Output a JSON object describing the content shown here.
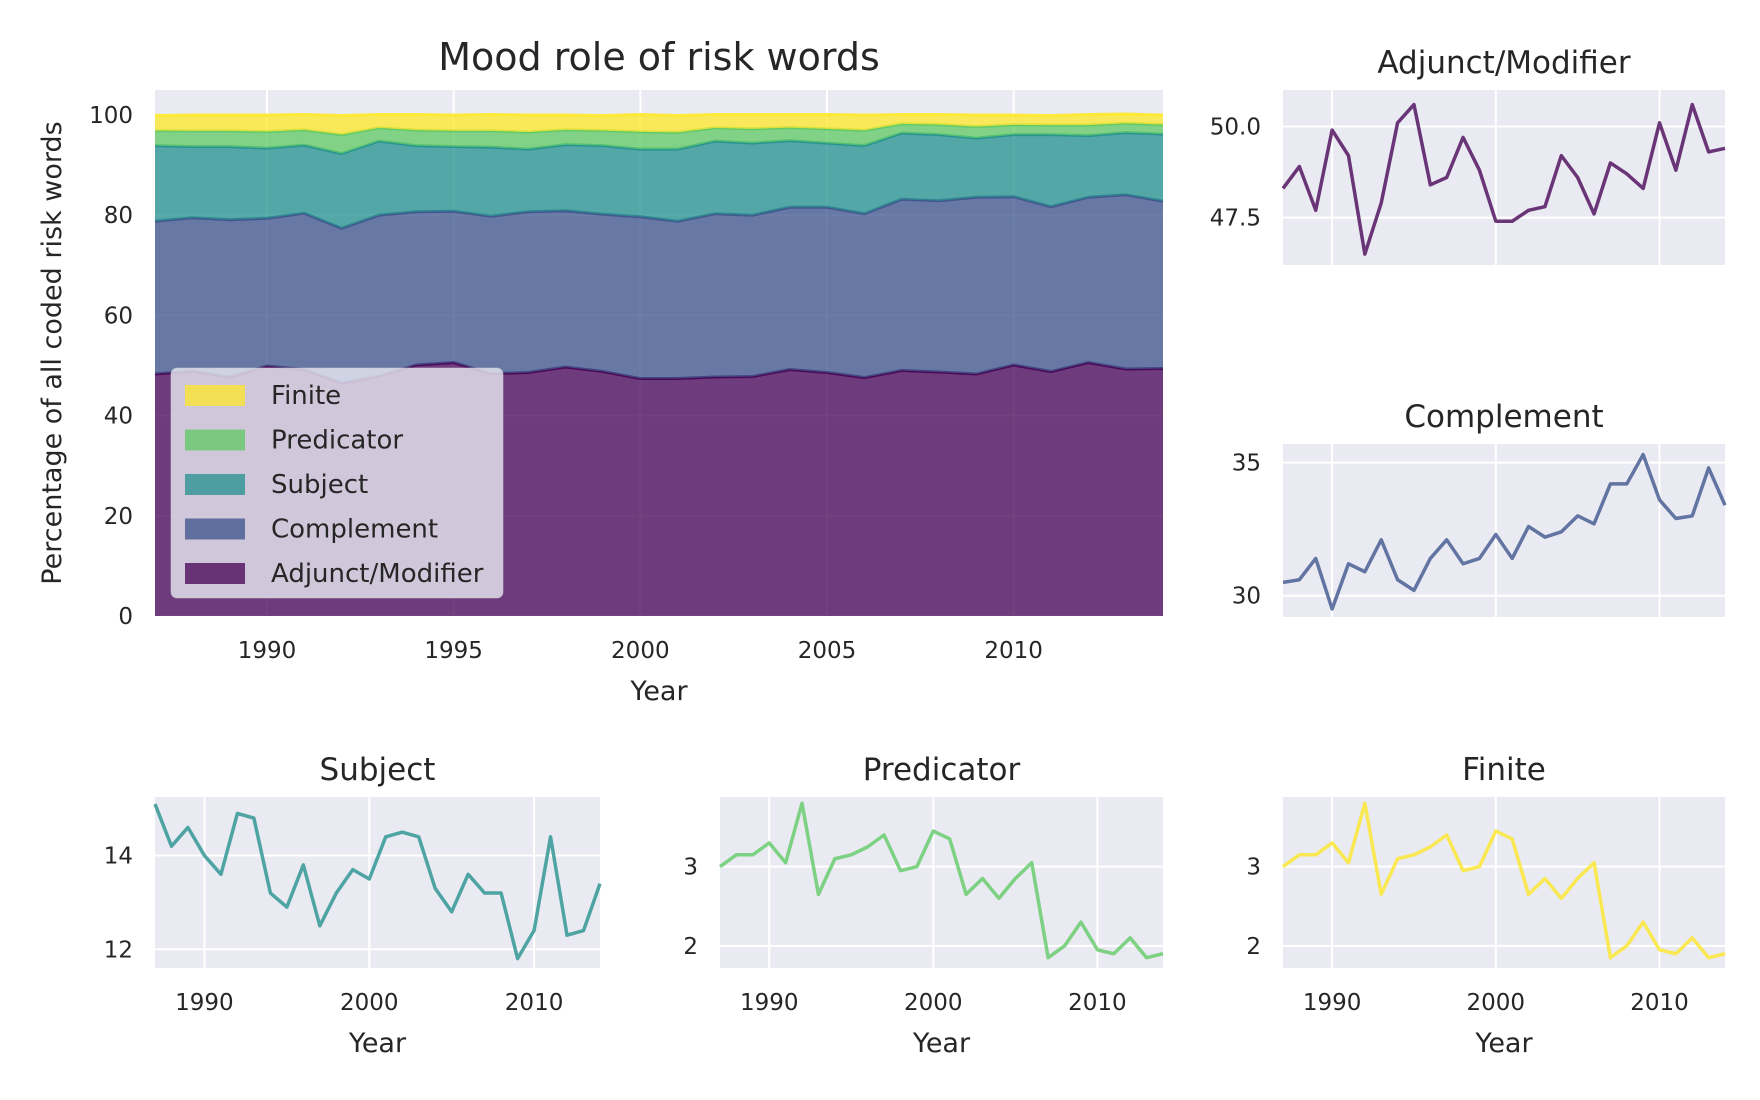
{
  "colors": {
    "adjunct": "#440154",
    "complement": "#3b528b",
    "subject": "#21908d",
    "predicator": "#5dc963",
    "finite": "#fde725",
    "axes_bg": "#eaeaf2",
    "grid": "#ffffff",
    "text": "#262626"
  },
  "chart_data": [
    {
      "id": "main",
      "type": "area",
      "title": "Mood role of risk words",
      "xlabel": "Year",
      "ylabel": "Percentage of all coded risk words",
      "xlim": [
        1987,
        2014
      ],
      "ylim": [
        0,
        105
      ],
      "x_ticks": [
        1990,
        1995,
        2000,
        2005,
        2010
      ],
      "y_ticks": [
        0,
        20,
        40,
        60,
        80,
        100
      ],
      "x": [
        1987,
        1988,
        1989,
        1990,
        1991,
        1992,
        1993,
        1994,
        1995,
        1996,
        1997,
        1998,
        1999,
        2000,
        2001,
        2002,
        2003,
        2004,
        2005,
        2006,
        2007,
        2008,
        2009,
        2010,
        2011,
        2012,
        2013,
        2014
      ],
      "legend": {
        "placement": "center-left",
        "entries": [
          "Finite",
          "Predicator",
          "Subject",
          "Complement",
          "Adjunct/Modifier"
        ]
      },
      "series": [
        {
          "name": "Adjunct/Modifier",
          "color_key": "adjunct",
          "values": [
            48.3,
            48.9,
            47.7,
            49.9,
            49.2,
            46.5,
            47.9,
            50.1,
            50.6,
            48.4,
            48.6,
            49.7,
            48.8,
            47.4,
            47.4,
            47.7,
            47.8,
            49.2,
            48.6,
            47.6,
            49.0,
            48.7,
            48.3,
            50.1,
            48.8,
            50.6,
            49.3,
            49.4
          ]
        },
        {
          "name": "Complement",
          "color_key": "complement",
          "values": [
            30.5,
            30.6,
            31.4,
            29.5,
            31.2,
            30.9,
            32.1,
            30.6,
            30.2,
            31.4,
            32.1,
            31.2,
            31.4,
            32.3,
            31.4,
            32.6,
            32.2,
            32.4,
            33.0,
            32.7,
            34.2,
            34.2,
            35.3,
            33.6,
            32.9,
            33.0,
            34.8,
            33.4
          ]
        },
        {
          "name": "Subject",
          "color_key": "subject",
          "values": [
            15.1,
            14.2,
            14.6,
            14.0,
            13.6,
            14.9,
            14.8,
            13.2,
            12.9,
            13.8,
            12.5,
            13.2,
            13.7,
            13.5,
            14.4,
            14.5,
            14.4,
            13.3,
            12.8,
            13.6,
            13.2,
            13.2,
            11.8,
            12.4,
            14.4,
            12.3,
            12.4,
            13.4
          ]
        },
        {
          "name": "Predicator",
          "color_key": "predicator",
          "values": [
            3.0,
            3.15,
            3.15,
            3.3,
            3.05,
            3.8,
            2.65,
            3.1,
            3.15,
            3.25,
            3.4,
            2.95,
            3.0,
            3.45,
            3.35,
            2.65,
            2.85,
            2.6,
            2.85,
            3.05,
            1.85,
            2.0,
            2.3,
            1.95,
            1.9,
            2.1,
            1.85,
            1.9
          ]
        },
        {
          "name": "Finite",
          "color_key": "finite",
          "values": [
            3.0,
            3.15,
            3.15,
            3.3,
            3.05,
            3.8,
            2.65,
            3.1,
            3.15,
            3.25,
            3.4,
            2.95,
            3.0,
            3.45,
            3.35,
            2.65,
            2.85,
            2.6,
            2.85,
            3.05,
            1.85,
            2.0,
            2.3,
            1.95,
            1.9,
            2.1,
            1.85,
            1.9
          ]
        }
      ]
    },
    {
      "id": "adjunct",
      "type": "line",
      "title": "Adjunct/Modifier",
      "series_ref": "Adjunct/Modifier",
      "color_key": "adjunct",
      "xlim": [
        1987,
        2014
      ],
      "ylim": [
        46.2,
        51.0
      ],
      "x_gridlines": [
        1990,
        2000,
        2010
      ],
      "y_ticks": [
        47.5,
        50.0
      ],
      "y_tick_labels": [
        "47.5",
        "50.0"
      ],
      "x_tick_labels_shown": false
    },
    {
      "id": "complement",
      "type": "line",
      "title": "Complement",
      "series_ref": "Complement",
      "color_key": "complement",
      "xlim": [
        1987,
        2014
      ],
      "ylim": [
        29.2,
        35.7
      ],
      "x_gridlines": [
        1990,
        2000,
        2010
      ],
      "y_ticks": [
        30,
        35
      ],
      "y_tick_labels": [
        "30",
        "35"
      ],
      "x_tick_labels_shown": false
    },
    {
      "id": "subject",
      "type": "line",
      "title": "Subject",
      "series_ref": "Subject",
      "color_key": "subject",
      "xlabel": "Year",
      "xlim": [
        1987,
        2014
      ],
      "ylim": [
        11.6,
        15.25
      ],
      "x_ticks": [
        1990,
        2000,
        2010
      ],
      "y_ticks": [
        12,
        14
      ],
      "y_tick_labels": [
        "12",
        "14"
      ]
    },
    {
      "id": "predicator",
      "type": "line",
      "title": "Predicator",
      "series_ref": "Predicator",
      "color_key": "predicator",
      "xlabel": "Year",
      "xlim": [
        1987,
        2014
      ],
      "ylim": [
        1.72,
        3.88
      ],
      "x_ticks": [
        1990,
        2000,
        2010
      ],
      "y_ticks": [
        2,
        3
      ],
      "y_tick_labels": [
        "2",
        "3"
      ]
    },
    {
      "id": "finite",
      "type": "line",
      "title": "Finite",
      "series_ref": "Finite",
      "color_key": "finite",
      "xlabel": "Year",
      "xlim": [
        1987,
        2014
      ],
      "ylim": [
        1.72,
        3.88
      ],
      "x_ticks": [
        1990,
        2000,
        2010
      ],
      "y_ticks": [
        2,
        3
      ],
      "y_tick_labels": [
        "2",
        "3"
      ]
    }
  ]
}
